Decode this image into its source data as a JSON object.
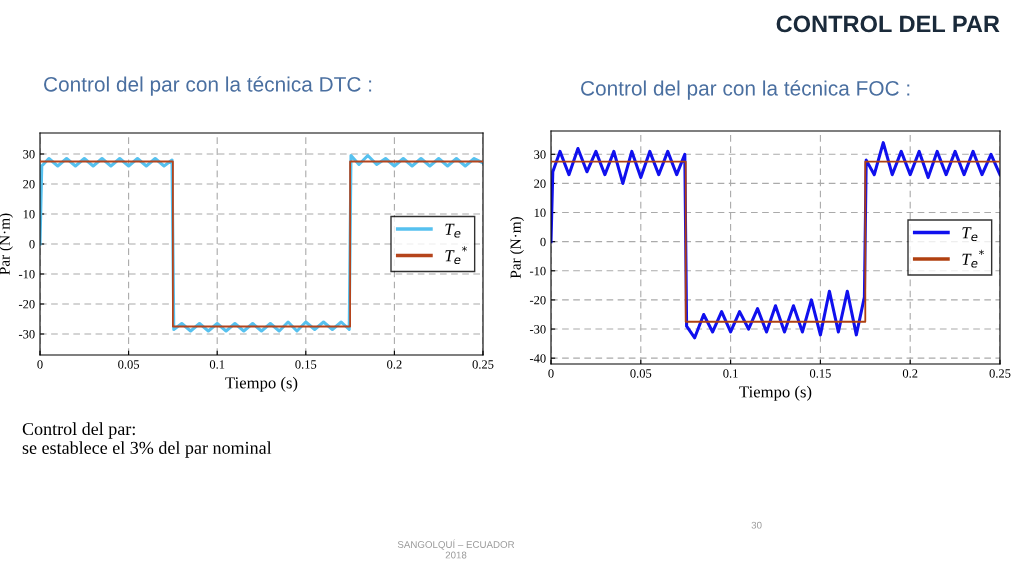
{
  "chart_data": [
    {
      "type": "line",
      "title": "Control del par con la técnica DTC :",
      "xlabel": "Tiempo (s)",
      "ylabel": "Par (N·m)",
      "xlim": [
        0,
        0.25
      ],
      "xticks": [
        0,
        0.05,
        0.1,
        0.15,
        0.2,
        0.25
      ],
      "ylim": [
        -37,
        37
      ],
      "yticks": [
        -30,
        -20,
        -10,
        0,
        10,
        20,
        30
      ],
      "grid": true,
      "legend": "right",
      "line_style": "solid",
      "annotations": [
        "CONTROL DEL PAR",
        "Control del par:\nse establece el 3% del par nominal",
        "SANGOLQUÍ – ECUADOR\n2018",
        "30"
      ],
      "series": [
        {
          "name": "T$_{e}$",
          "color": "#56c1ef",
          "x": [
            0,
            0.001,
            0.005,
            0.01,
            0.015,
            0.02,
            0.025,
            0.03,
            0.035,
            0.04,
            0.045,
            0.05,
            0.055,
            0.06,
            0.065,
            0.07,
            0.0745,
            0.0755,
            0.08,
            0.085,
            0.09,
            0.095,
            0.1,
            0.105,
            0.11,
            0.115,
            0.12,
            0.125,
            0.13,
            0.135,
            0.14,
            0.145,
            0.15,
            0.155,
            0.16,
            0.165,
            0.17,
            0.1745,
            0.1755,
            0.18,
            0.185,
            0.19,
            0.195,
            0.2,
            0.205,
            0.21,
            0.215,
            0.22,
            0.225,
            0.23,
            0.235,
            0.24,
            0.245,
            0.25
          ],
          "values": [
            0,
            26,
            28.5,
            26,
            28.5,
            26,
            28.5,
            26,
            28.5,
            26,
            28.5,
            26,
            28.5,
            26,
            28.5,
            26,
            28,
            -28.5,
            -26.5,
            -29,
            -26.5,
            -29,
            -26.5,
            -29,
            -26.5,
            -29,
            -26.5,
            -29,
            -26.5,
            -29,
            -26,
            -29,
            -26,
            -28.5,
            -26,
            -28.5,
            -26,
            -28.5,
            29.5,
            26.5,
            29.5,
            26.5,
            28.5,
            26,
            28.5,
            26,
            28.5,
            26,
            28.5,
            26,
            28.5,
            26,
            28.5,
            27
          ]
        },
        {
          "name": "T$_{e}$$^{*}$",
          "color": "#b5441c",
          "x": [
            0,
            0.075,
            0.075,
            0.175,
            0.175,
            0.25
          ],
          "values": [
            27.5,
            27.5,
            -27.5,
            -27.5,
            27.5,
            27.5
          ]
        }
      ]
    },
    {
      "type": "line",
      "title": "Control del par con la técnica FOC :",
      "xlabel": "Tiempo (s)",
      "ylabel": "Par (N·m)",
      "xlim": [
        0,
        0.25
      ],
      "xticks": [
        0,
        0.05,
        0.1,
        0.15,
        0.2,
        0.25
      ],
      "ylim": [
        -42,
        38
      ],
      "yticks": [
        -40,
        -30,
        -20,
        -10,
        0,
        10,
        20,
        30
      ],
      "grid": true,
      "legend": "right",
      "line_style": "solid",
      "series": [
        {
          "name": "T$_{e}$",
          "color": "#1010ee",
          "x": [
            0,
            0.001,
            0.005,
            0.01,
            0.015,
            0.02,
            0.025,
            0.03,
            0.035,
            0.04,
            0.045,
            0.05,
            0.055,
            0.06,
            0.065,
            0.07,
            0.0745,
            0.0755,
            0.08,
            0.085,
            0.09,
            0.095,
            0.1,
            0.105,
            0.11,
            0.115,
            0.12,
            0.125,
            0.13,
            0.135,
            0.14,
            0.145,
            0.15,
            0.155,
            0.16,
            0.165,
            0.17,
            0.1745,
            0.1755,
            0.18,
            0.185,
            0.19,
            0.195,
            0.2,
            0.205,
            0.21,
            0.215,
            0.22,
            0.225,
            0.23,
            0.235,
            0.24,
            0.245,
            0.25
          ],
          "values": [
            0,
            24,
            31,
            23,
            32,
            24,
            31,
            23,
            31,
            20,
            31,
            22,
            31,
            23,
            31,
            23,
            30,
            -29,
            -33,
            -25,
            -31,
            -24,
            -31,
            -24,
            -30,
            -23,
            -31,
            -22,
            -31,
            -22,
            -31,
            -20,
            -32,
            -17,
            -31,
            -17,
            -32,
            -19,
            28,
            23,
            34,
            23,
            31,
            23,
            31,
            22,
            31,
            23,
            31,
            23,
            31,
            23,
            30,
            23
          ]
        },
        {
          "name": "T$_{e}$$^{*}$",
          "color": "#b04010",
          "x": [
            0,
            0.075,
            0.075,
            0.175,
            0.175,
            0.25
          ],
          "values": [
            27.5,
            27.5,
            -27.5,
            -27.5,
            27.5,
            27.5
          ]
        }
      ]
    }
  ]
}
